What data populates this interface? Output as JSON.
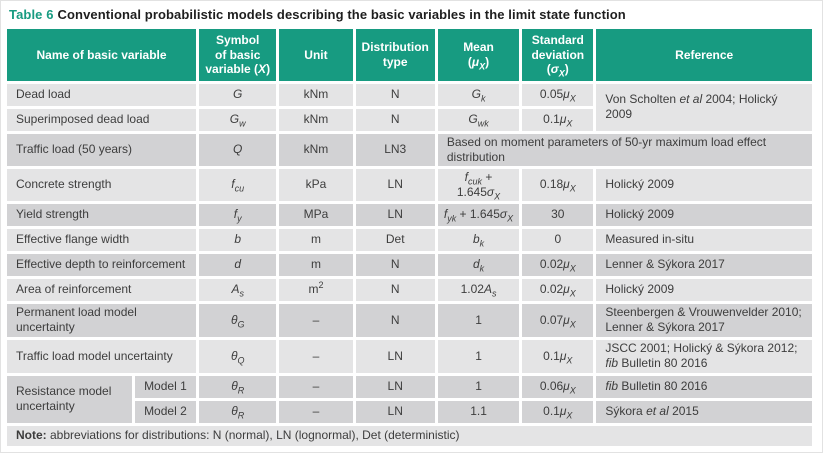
{
  "colors": {
    "accent": "#179b81",
    "header_bg": "#179b81",
    "row_light": "#e4e4e5",
    "row_dark": "#d2d2d4"
  },
  "title": {
    "label": "Table 6",
    "text": "Conventional probabilistic models describing the basic variables in the limit state function"
  },
  "header": {
    "name": "Name of basic variable",
    "symbol": [
      {
        "t": "Symbol"
      },
      {
        "s": "br"
      },
      {
        "t": "of basic"
      },
      {
        "s": "br"
      },
      {
        "t": "variable ("
      },
      {
        "t": "X",
        "s": "i"
      },
      {
        "t": ")"
      }
    ],
    "unit": "Unit",
    "dist": [
      {
        "t": "Distribution"
      },
      {
        "s": "br"
      },
      {
        "t": "type"
      }
    ],
    "mean": [
      {
        "t": "Mean"
      },
      {
        "s": "br"
      },
      {
        "t": "("
      },
      {
        "t": "μ",
        "s": "i"
      },
      {
        "t": "X",
        "s": "subi"
      },
      {
        "t": ")"
      }
    ],
    "sd": [
      {
        "t": "Standard"
      },
      {
        "s": "br"
      },
      {
        "t": "deviation"
      },
      {
        "s": "br"
      },
      {
        "t": "("
      },
      {
        "t": "σ",
        "s": "i"
      },
      {
        "t": "X",
        "s": "subi"
      },
      {
        "t": ")"
      }
    ],
    "ref": "Reference"
  },
  "rows": [
    {
      "name": "Dead load",
      "symbol": [
        {
          "t": "G",
          "s": "i"
        }
      ],
      "unit": [
        {
          "t": "kNm"
        }
      ],
      "dist": "N",
      "mean": [
        {
          "t": "G",
          "s": "i"
        },
        {
          "t": "k",
          "s": "subi"
        }
      ],
      "sd": [
        {
          "t": "0.05"
        },
        {
          "t": "μ",
          "s": "i"
        },
        {
          "t": "X",
          "s": "subi"
        }
      ],
      "ref": [
        {
          "t": "Von Scholten "
        },
        {
          "t": "et al",
          "s": "i"
        },
        {
          "t": " 2004; Holický 2009"
        }
      ]
    },
    {
      "name": "Superimposed dead load",
      "symbol": [
        {
          "t": "G",
          "s": "i"
        },
        {
          "t": "w",
          "s": "subi"
        }
      ],
      "unit": [
        {
          "t": "kNm"
        }
      ],
      "dist": "N",
      "mean": [
        {
          "t": "G",
          "s": "i"
        },
        {
          "t": "wk",
          "s": "subi"
        }
      ],
      "sd": [
        {
          "t": "0.1"
        },
        {
          "t": "μ",
          "s": "i"
        },
        {
          "t": "X",
          "s": "subi"
        }
      ]
    },
    {
      "name": "Traffic load (50 years)",
      "symbol": [
        {
          "t": "Q",
          "s": "i"
        }
      ],
      "unit": [
        {
          "t": "kNm"
        }
      ],
      "dist": "LN3",
      "merged": [
        {
          "t": "Based on moment parameters of 50-yr maximum load effect distribution"
        }
      ]
    },
    {
      "name": "Concrete strength",
      "symbol": [
        {
          "t": "f",
          "s": "i"
        },
        {
          "t": "cu",
          "s": "subi"
        }
      ],
      "unit": [
        {
          "t": "kPa"
        }
      ],
      "dist": "LN",
      "mean": [
        {
          "t": "f",
          "s": "i"
        },
        {
          "t": "cuk",
          "s": "subi"
        },
        {
          "t": " + 1.645"
        },
        {
          "t": "σ",
          "s": "i"
        },
        {
          "t": "X",
          "s": "subi"
        }
      ],
      "sd": [
        {
          "t": "0.18"
        },
        {
          "t": "μ",
          "s": "i"
        },
        {
          "t": "X",
          "s": "subi"
        }
      ],
      "ref": [
        {
          "t": "Holický 2009"
        }
      ]
    },
    {
      "name": "Yield strength",
      "symbol": [
        {
          "t": "f",
          "s": "i"
        },
        {
          "t": "y",
          "s": "subi"
        }
      ],
      "unit": [
        {
          "t": "MPa"
        }
      ],
      "dist": "LN",
      "mean": [
        {
          "t": "f",
          "s": "i"
        },
        {
          "t": "yk",
          "s": "subi"
        },
        {
          "t": " + 1.645"
        },
        {
          "t": "σ",
          "s": "i"
        },
        {
          "t": "X",
          "s": "subi"
        }
      ],
      "sd": [
        {
          "t": "30"
        }
      ],
      "ref": [
        {
          "t": "Holický 2009"
        }
      ]
    },
    {
      "name": "Effective flange width",
      "symbol": [
        {
          "t": "b",
          "s": "i"
        }
      ],
      "unit": [
        {
          "t": "m"
        }
      ],
      "dist": "Det",
      "mean": [
        {
          "t": "b",
          "s": "i"
        },
        {
          "t": "k",
          "s": "subi"
        }
      ],
      "sd": [
        {
          "t": "0"
        }
      ],
      "ref": [
        {
          "t": "Measured in-situ"
        }
      ]
    },
    {
      "name": "Effective depth to reinforcement",
      "symbol": [
        {
          "t": "d",
          "s": "i"
        }
      ],
      "unit": [
        {
          "t": "m"
        }
      ],
      "dist": "N",
      "mean": [
        {
          "t": "d",
          "s": "i"
        },
        {
          "t": "k",
          "s": "subi"
        }
      ],
      "sd": [
        {
          "t": "0.02"
        },
        {
          "t": "μ",
          "s": "i"
        },
        {
          "t": "X",
          "s": "subi"
        }
      ],
      "ref": [
        {
          "t": "Lenner & Sýkora 2017"
        }
      ]
    },
    {
      "name": "Area of reinforcement",
      "symbol": [
        {
          "t": "A",
          "s": "i"
        },
        {
          "t": "s",
          "s": "subi"
        }
      ],
      "unit": [
        {
          "t": "m"
        },
        {
          "t": "2",
          "s": "sup"
        }
      ],
      "dist": "N",
      "mean": [
        {
          "t": "1.02"
        },
        {
          "t": "A",
          "s": "i"
        },
        {
          "t": "s",
          "s": "subi"
        }
      ],
      "sd": [
        {
          "t": "0.02"
        },
        {
          "t": "μ",
          "s": "i"
        },
        {
          "t": "X",
          "s": "subi"
        }
      ],
      "ref": [
        {
          "t": "Holický 2009"
        }
      ]
    },
    {
      "name": "Permanent load model uncertainty",
      "symbol": [
        {
          "t": "θ",
          "s": "i"
        },
        {
          "t": "G",
          "s": "subi"
        }
      ],
      "unit": [
        {
          "t": "–"
        }
      ],
      "dist": "N",
      "mean": [
        {
          "t": "1"
        }
      ],
      "sd": [
        {
          "t": "0.07"
        },
        {
          "t": "μ",
          "s": "i"
        },
        {
          "t": "X",
          "s": "subi"
        }
      ],
      "ref": [
        {
          "t": "Steenbergen & Vrouwenvelder 2010;"
        },
        {
          "s": "br"
        },
        {
          "t": "Lenner & Sýkora 2017"
        }
      ]
    },
    {
      "name": "Traffic load model uncertainty",
      "symbol": [
        {
          "t": "θ",
          "s": "i"
        },
        {
          "t": "Q",
          "s": "subi"
        }
      ],
      "unit": [
        {
          "t": "–"
        }
      ],
      "dist": "LN",
      "mean": [
        {
          "t": "1"
        }
      ],
      "sd": [
        {
          "t": "0.1"
        },
        {
          "t": "μ",
          "s": "i"
        },
        {
          "t": "X",
          "s": "subi"
        }
      ],
      "ref": [
        {
          "t": "JSCC 2001; Holický & Sýkora 2012;"
        },
        {
          "s": "br"
        },
        {
          "t": "fib",
          "s": "i"
        },
        {
          "t": " Bulletin 80 2016"
        }
      ]
    },
    {
      "name": "Resistance model uncertainty",
      "model": "Model 1",
      "symbol": [
        {
          "t": "θ",
          "s": "i"
        },
        {
          "t": "R",
          "s": "subi"
        }
      ],
      "unit": [
        {
          "t": "–"
        }
      ],
      "dist": "LN",
      "mean": [
        {
          "t": "1"
        }
      ],
      "sd": [
        {
          "t": "0.06"
        },
        {
          "t": "μ",
          "s": "i"
        },
        {
          "t": "X",
          "s": "subi"
        }
      ],
      "ref": [
        {
          "t": "fib",
          "s": "i"
        },
        {
          "t": " Bulletin 80 2016"
        }
      ]
    },
    {
      "model": "Model 2",
      "symbol": [
        {
          "t": "θ",
          "s": "i"
        },
        {
          "t": "R",
          "s": "subi"
        }
      ],
      "unit": [
        {
          "t": "–"
        }
      ],
      "dist": "LN",
      "mean": [
        {
          "t": "1.1"
        }
      ],
      "sd": [
        {
          "t": "0.1"
        },
        {
          "t": "μ",
          "s": "i"
        },
        {
          "t": "X",
          "s": "subi"
        }
      ],
      "ref": [
        {
          "t": "Sýkora "
        },
        {
          "t": "et al",
          "s": "i"
        },
        {
          "t": " 2015"
        }
      ]
    }
  ],
  "note": [
    {
      "t": "Note:",
      "s": "b"
    },
    {
      "t": " abbreviations for distributions: N (normal), LN (lognormal), Det (deterministic)"
    }
  ]
}
